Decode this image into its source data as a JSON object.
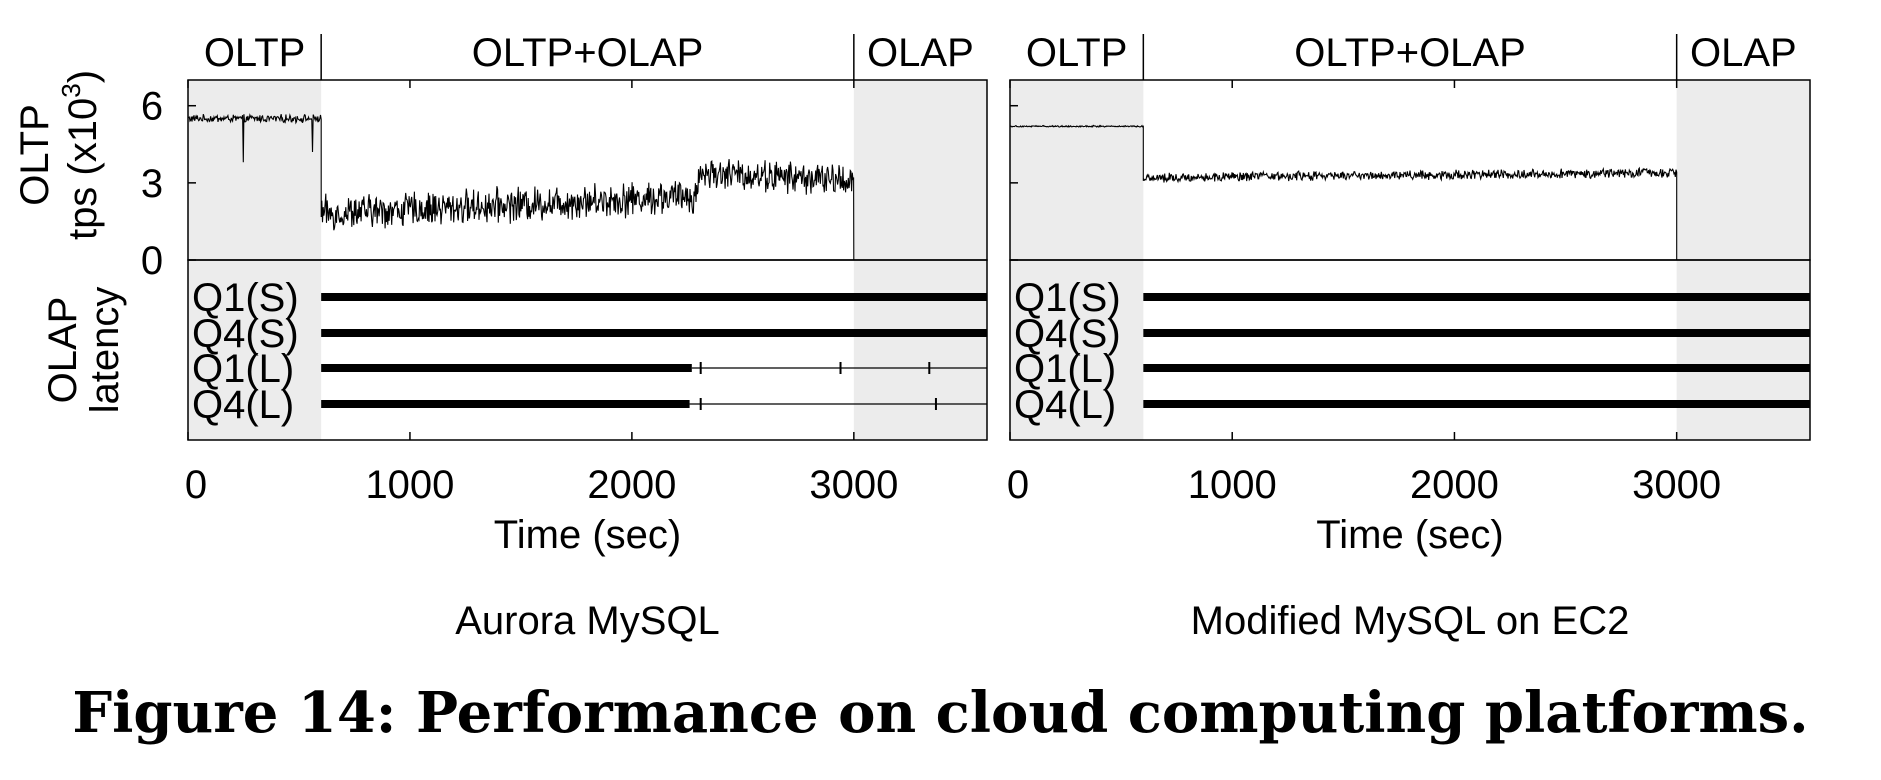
{
  "figure": {
    "caption": "Figure 14: Performance on cloud computing platforms."
  },
  "y_labels": {
    "tps_line1": "OLTP",
    "tps_line2": "tps (x10",
    "tps_sup": "3",
    "tps_close": ")",
    "latency_line1": "OLAP",
    "latency_line2": "latency"
  },
  "chart_data": [
    {
      "type": "line",
      "subtitle": "Aurora MySQL",
      "xlabel": "Time (sec)",
      "xlim": [
        0,
        3600
      ],
      "xticks": [
        0,
        1000,
        2000,
        3000
      ],
      "phases": [
        {
          "label": "OLTP",
          "start": 0,
          "end": 600,
          "shaded": true
        },
        {
          "label": "OLTP+OLAP",
          "start": 600,
          "end": 3000,
          "shaded": false
        },
        {
          "label": "OLAP",
          "start": 3000,
          "end": 3600,
          "shaded": true
        }
      ],
      "throughput": {
        "ylim": [
          0,
          7
        ],
        "yticks": [
          0,
          3,
          6
        ],
        "segments": [
          {
            "t_start": 0,
            "t_end": 600,
            "mean": 5.5,
            "noise": 0.25
          },
          {
            "t_start": 600,
            "t_end": 2300,
            "mean_start": 1.8,
            "mean_end": 2.5,
            "noise": 1.1
          },
          {
            "t_start": 2300,
            "t_end": 3000,
            "mean_start": 3.4,
            "mean_end": 3.1,
            "noise": 1.0
          }
        ],
        "dips": [
          {
            "t": 250,
            "value": 3.8
          },
          {
            "t": 560,
            "value": 4.2
          }
        ]
      },
      "latency": {
        "queries": [
          "Q1(S)",
          "Q4(S)",
          "Q1(L)",
          "Q4(L)"
        ],
        "bars": [
          {
            "query": "Q1(S)",
            "dense_until": 3600,
            "tick_marks": []
          },
          {
            "query": "Q4(S)",
            "dense_until": 3600,
            "tick_marks": []
          },
          {
            "query": "Q1(L)",
            "dense_until": 2270,
            "tick_marks": [
              2310,
              2940,
              3340
            ]
          },
          {
            "query": "Q4(L)",
            "dense_until": 2260,
            "tick_marks": [
              2310,
              3370
            ]
          }
        ]
      }
    },
    {
      "type": "line",
      "subtitle": "Modified MySQL on EC2",
      "xlabel": "Time (sec)",
      "xlim": [
        0,
        3600
      ],
      "xticks": [
        0,
        1000,
        2000,
        3000
      ],
      "phases": [
        {
          "label": "OLTP",
          "start": 0,
          "end": 600,
          "shaded": true
        },
        {
          "label": "OLTP+OLAP",
          "start": 600,
          "end": 3000,
          "shaded": false
        },
        {
          "label": "OLAP",
          "start": 3000,
          "end": 3600,
          "shaded": true
        }
      ],
      "throughput": {
        "ylim": [
          0,
          7
        ],
        "yticks": [
          0,
          3,
          6
        ],
        "segments": [
          {
            "t_start": 0,
            "t_end": 600,
            "mean": 5.2,
            "noise": 0.05
          },
          {
            "t_start": 600,
            "t_end": 3000,
            "mean_start": 3.2,
            "mean_end": 3.4,
            "noise": 0.3
          }
        ],
        "dips": []
      },
      "latency": {
        "queries": [
          "Q1(S)",
          "Q4(S)",
          "Q1(L)",
          "Q4(L)"
        ],
        "bars": [
          {
            "query": "Q1(S)",
            "dense_until": 3600,
            "tick_marks": []
          },
          {
            "query": "Q4(S)",
            "dense_until": 3600,
            "tick_marks": []
          },
          {
            "query": "Q1(L)",
            "dense_until": 3600,
            "tick_marks": []
          },
          {
            "query": "Q4(L)",
            "dense_until": 3600,
            "tick_marks": []
          }
        ]
      }
    }
  ]
}
